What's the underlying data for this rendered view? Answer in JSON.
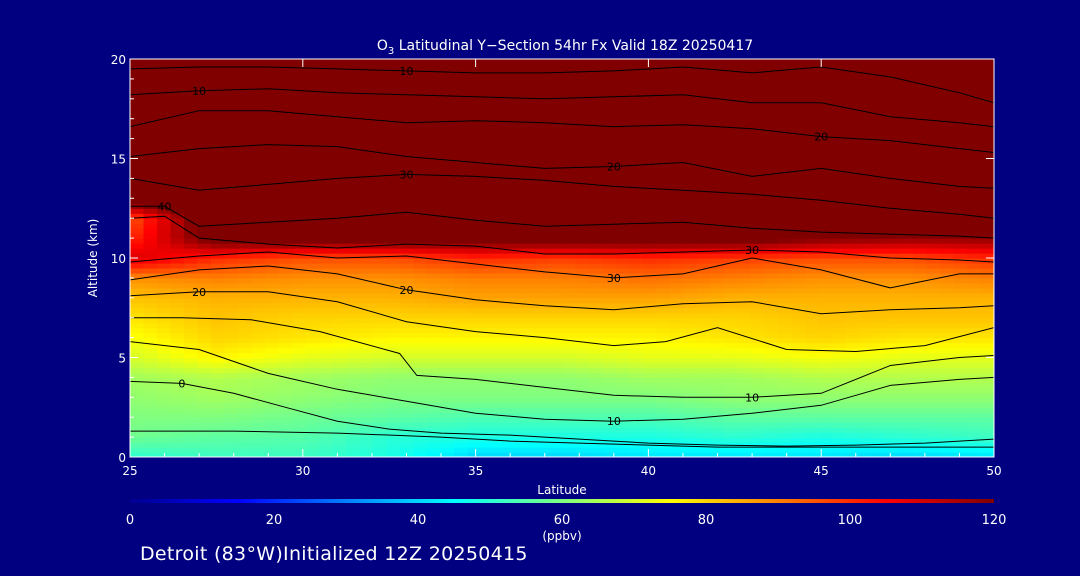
{
  "chart_data": {
    "type": "heatmap",
    "title_main": "O",
    "title_sub": "3",
    "title_rest": " Latitudinal Y−Section 54hr  Fx Valid 18Z 20250417",
    "xlabel": "Latitude",
    "ylabel": "Altitude (km)",
    "xlim": [
      25,
      50
    ],
    "ylim": [
      0,
      20
    ],
    "xticks": [
      "25",
      "30",
      "35",
      "40",
      "45",
      "50"
    ],
    "yticks": [
      "0",
      "5",
      "10",
      "15",
      "20"
    ],
    "colorbar": {
      "min": 0,
      "max": 120,
      "ticks": [
        "0",
        "20",
        "40",
        "60",
        "80",
        "100",
        "120"
      ],
      "label": "(ppbv)",
      "colormap": [
        "#00008f",
        "#0000ff",
        "#0080ff",
        "#00ffff",
        "#80ff80",
        "#ffff00",
        "#ff8000",
        "#ff0000",
        "#800000"
      ]
    },
    "field": {
      "lat": [
        25,
        27.5,
        30,
        32.5,
        35,
        37.5,
        40,
        42.5,
        45,
        47.5,
        50
      ],
      "alt": [
        0,
        1,
        2,
        3,
        4,
        5,
        6,
        7,
        8,
        9,
        10,
        11,
        12,
        13,
        20
      ],
      "ozone_ppbv": [
        [
          50,
          52,
          52,
          48,
          40,
          40,
          42,
          42,
          42,
          40,
          42
        ],
        [
          58,
          56,
          55,
          50,
          48,
          48,
          48,
          50,
          48,
          50,
          52
        ],
        [
          60,
          60,
          58,
          56,
          54,
          54,
          54,
          56,
          56,
          56,
          56
        ],
        [
          62,
          64,
          62,
          60,
          60,
          60,
          60,
          62,
          62,
          62,
          62
        ],
        [
          64,
          66,
          64,
          62,
          62,
          62,
          64,
          64,
          66,
          66,
          66
        ],
        [
          70,
          76,
          72,
          70,
          70,
          70,
          72,
          72,
          74,
          72,
          72
        ],
        [
          74,
          80,
          78,
          76,
          76,
          76,
          76,
          78,
          80,
          78,
          78
        ],
        [
          78,
          82,
          80,
          80,
          80,
          80,
          80,
          80,
          82,
          82,
          82
        ],
        [
          82,
          84,
          84,
          84,
          86,
          86,
          86,
          84,
          84,
          84,
          84
        ],
        [
          88,
          90,
          88,
          88,
          90,
          90,
          92,
          90,
          88,
          88,
          90
        ],
        [
          110,
          100,
          96,
          96,
          100,
          98,
          100,
          98,
          96,
          96,
          100
        ],
        [
          100,
          125,
          125,
          125,
          125,
          125,
          125,
          125,
          120,
          118,
          118
        ],
        [
          95,
          130,
          130,
          130,
          130,
          130,
          130,
          130,
          130,
          130,
          130
        ],
        [
          130,
          130,
          130,
          130,
          130,
          130,
          130,
          130,
          130,
          130,
          130
        ],
        [
          130,
          130,
          130,
          130,
          130,
          130,
          130,
          130,
          130,
          130,
          130
        ]
      ]
    },
    "contours": [
      {
        "label": "0",
        "points": [
          [
            25,
            3.8
          ],
          [
            26.5,
            3.7
          ],
          [
            28,
            3.2
          ],
          [
            29.5,
            2.5
          ],
          [
            31,
            1.8
          ],
          [
            32.5,
            1.4
          ],
          [
            34,
            1.2
          ],
          [
            36,
            1.1
          ],
          [
            38,
            0.9
          ],
          [
            40,
            0.7
          ],
          [
            42,
            0.6
          ],
          [
            44,
            0.55
          ],
          [
            46,
            0.6
          ],
          [
            48,
            0.7
          ],
          [
            50,
            0.9
          ]
        ]
      },
      {
        "label": "",
        "points": [
          [
            25,
            1.3
          ],
          [
            28,
            1.3
          ],
          [
            31,
            1.2
          ],
          [
            34,
            1.0
          ],
          [
            36,
            0.8
          ],
          [
            38,
            0.7
          ],
          [
            40,
            0.6
          ],
          [
            42,
            0.5
          ],
          [
            44,
            0.5
          ],
          [
            46,
            0.5
          ],
          [
            48,
            0.5
          ],
          [
            50,
            0.5
          ]
        ]
      },
      {
        "label": "10",
        "points": [
          [
            25,
            5.8
          ],
          [
            27,
            5.4
          ],
          [
            29,
            4.2
          ],
          [
            31,
            3.4
          ],
          [
            33,
            2.8
          ],
          [
            35,
            2.2
          ],
          [
            37,
            1.9
          ],
          [
            39,
            1.8
          ],
          [
            41,
            1.9
          ],
          [
            43,
            2.2
          ],
          [
            45,
            2.6
          ],
          [
            47,
            3.6
          ],
          [
            49,
            3.9
          ],
          [
            50,
            4.0
          ]
        ]
      },
      {
        "label": "10",
        "points": [
          [
            25,
            7.0
          ],
          [
            26.5,
            7.0
          ],
          [
            28.5,
            6.9
          ],
          [
            30.5,
            6.3
          ],
          [
            32.8,
            5.2
          ],
          [
            33.3,
            4.1
          ],
          [
            35,
            3.9
          ],
          [
            37,
            3.5
          ],
          [
            39,
            3.1
          ],
          [
            41,
            3.0
          ],
          [
            43,
            3.0
          ],
          [
            45,
            3.2
          ],
          [
            47,
            4.6
          ],
          [
            49,
            5.0
          ],
          [
            50,
            5.1
          ]
        ]
      },
      {
        "label": "20",
        "points": [
          [
            25,
            8.1
          ],
          [
            27,
            8.3
          ],
          [
            29,
            8.3
          ],
          [
            31,
            7.8
          ],
          [
            33,
            6.8
          ],
          [
            35,
            6.3
          ],
          [
            37,
            6.0
          ],
          [
            39,
            5.6
          ],
          [
            40.5,
            5.8
          ],
          [
            42,
            6.5
          ],
          [
            44,
            5.4
          ],
          [
            46,
            5.3
          ],
          [
            48,
            5.6
          ],
          [
            50,
            6.5
          ]
        ]
      },
      {
        "label": "20",
        "points": [
          [
            25,
            8.9
          ],
          [
            27,
            9.4
          ],
          [
            29,
            9.6
          ],
          [
            31,
            9.2
          ],
          [
            33,
            8.4
          ],
          [
            35,
            7.9
          ],
          [
            37,
            7.6
          ],
          [
            39,
            7.4
          ],
          [
            41,
            7.7
          ],
          [
            43,
            7.8
          ],
          [
            45,
            7.2
          ],
          [
            47,
            7.4
          ],
          [
            49,
            7.5
          ],
          [
            50,
            7.6
          ]
        ]
      },
      {
        "label": "30",
        "points": [
          [
            25,
            9.8
          ],
          [
            27,
            10.1
          ],
          [
            29,
            10.3
          ],
          [
            31,
            10.0
          ],
          [
            33,
            10.1
          ],
          [
            35,
            9.7
          ],
          [
            37,
            9.3
          ],
          [
            39,
            9.0
          ],
          [
            41,
            9.2
          ],
          [
            43,
            10.0
          ],
          [
            45,
            9.4
          ],
          [
            47,
            8.5
          ],
          [
            49,
            9.2
          ],
          [
            50,
            9.2
          ]
        ]
      },
      {
        "label": "30",
        "points": [
          [
            25,
            12.0
          ],
          [
            26,
            12.1
          ],
          [
            27,
            11.0
          ],
          [
            29,
            10.7
          ],
          [
            31,
            10.5
          ],
          [
            33,
            10.7
          ],
          [
            35,
            10.6
          ],
          [
            37,
            10.2
          ],
          [
            39,
            10.2
          ],
          [
            41,
            10.3
          ],
          [
            43,
            10.4
          ],
          [
            45,
            10.3
          ],
          [
            47,
            10.0
          ],
          [
            49,
            9.9
          ],
          [
            50,
            9.8
          ]
        ]
      },
      {
        "label": "40",
        "points": [
          [
            25,
            12.6
          ],
          [
            26,
            12.6
          ],
          [
            27,
            11.6
          ],
          [
            29,
            11.8
          ],
          [
            31,
            12.0
          ],
          [
            33,
            12.3
          ],
          [
            35,
            11.9
          ],
          [
            37,
            11.6
          ],
          [
            39,
            11.7
          ],
          [
            41,
            11.8
          ],
          [
            43,
            11.5
          ],
          [
            45,
            11.3
          ],
          [
            47,
            11.2
          ],
          [
            49,
            11.1
          ],
          [
            50,
            11.0
          ]
        ]
      },
      {
        "label": "30",
        "points": [
          [
            25,
            14.0
          ],
          [
            27,
            13.4
          ],
          [
            29,
            13.7
          ],
          [
            31,
            14.0
          ],
          [
            33,
            14.2
          ],
          [
            35,
            14.1
          ],
          [
            37,
            13.9
          ],
          [
            39,
            13.6
          ],
          [
            41,
            13.4
          ],
          [
            43,
            13.2
          ],
          [
            45,
            12.9
          ],
          [
            47,
            12.5
          ],
          [
            49,
            12.2
          ],
          [
            50,
            12.0
          ]
        ]
      },
      {
        "label": "20",
        "points": [
          [
            25,
            15.1
          ],
          [
            27,
            15.5
          ],
          [
            29,
            15.7
          ],
          [
            31,
            15.6
          ],
          [
            33,
            15.1
          ],
          [
            35,
            14.8
          ],
          [
            37,
            14.5
          ],
          [
            39,
            14.6
          ],
          [
            41,
            14.8
          ],
          [
            43,
            14.1
          ],
          [
            45,
            14.5
          ],
          [
            47,
            14.0
          ],
          [
            49,
            13.6
          ],
          [
            50,
            13.5
          ]
        ]
      },
      {
        "label": "20",
        "points": [
          [
            25,
            16.6
          ],
          [
            27,
            17.4
          ],
          [
            29,
            17.4
          ],
          [
            31,
            17.1
          ],
          [
            33,
            16.8
          ],
          [
            35,
            16.9
          ],
          [
            37,
            16.8
          ],
          [
            39,
            16.6
          ],
          [
            41,
            16.7
          ],
          [
            43,
            16.5
          ],
          [
            45,
            16.1
          ],
          [
            47,
            15.9
          ],
          [
            49,
            15.5
          ],
          [
            50,
            15.3
          ]
        ]
      },
      {
        "label": "10",
        "points": [
          [
            25,
            18.2
          ],
          [
            27,
            18.4
          ],
          [
            29,
            18.5
          ],
          [
            31,
            18.3
          ],
          [
            33,
            18.2
          ],
          [
            35,
            18.1
          ],
          [
            37,
            18.0
          ],
          [
            39,
            18.1
          ],
          [
            41,
            18.2
          ],
          [
            43,
            17.8
          ],
          [
            45,
            17.8
          ],
          [
            47,
            17.1
          ],
          [
            49,
            16.8
          ],
          [
            50,
            16.6
          ]
        ]
      },
      {
        "label": "10",
        "points": [
          [
            25,
            19.5
          ],
          [
            27,
            19.6
          ],
          [
            29,
            19.6
          ],
          [
            31,
            19.5
          ],
          [
            33,
            19.4
          ],
          [
            35,
            19.3
          ],
          [
            37,
            19.3
          ],
          [
            39,
            19.4
          ],
          [
            41,
            19.6
          ],
          [
            43,
            19.3
          ],
          [
            45,
            19.6
          ],
          [
            47,
            19.1
          ],
          [
            49,
            18.3
          ],
          [
            50,
            17.8
          ]
        ]
      }
    ]
  },
  "footer_text": "Detroit (83°W)Initialized 12Z 20250415"
}
